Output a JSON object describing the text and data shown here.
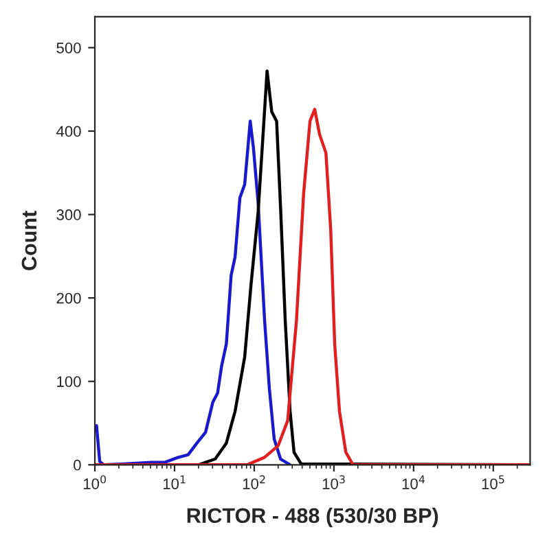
{
  "chart_data": {
    "type": "line",
    "xlabel": "RICTOR - 488 (530/30 BP)",
    "ylabel": "Count",
    "log": "x",
    "xlim": [
      1,
      290000
    ],
    "xticks": [
      {
        "value": 1,
        "label": "10$^{0}$"
      },
      {
        "value": 10,
        "label": "10$^{1}$"
      },
      {
        "value": 100,
        "label": "10$^{2}$"
      },
      {
        "value": 1000,
        "label": "10$^{3}$"
      },
      {
        "value": 10000,
        "label": "10$^{4}$"
      },
      {
        "value": 100000,
        "label": "10$^{5}$"
      }
    ],
    "ylim": [
      0,
      537
    ],
    "yticks": [
      0,
      100,
      200,
      300,
      400,
      500
    ],
    "grid": false,
    "legend": false,
    "marker": "none",
    "line_style": "solid",
    "series": [
      {
        "color": "#1a1acc",
        "x": [
          1.05,
          1.15,
          1.29,
          2.34,
          5.13,
          7.59,
          11.2,
          14.8,
          19.1,
          24.5,
          30.2,
          34.7,
          38.9,
          44.7,
          51.3,
          57.5,
          66.1,
          75.9,
          89.1,
          97.7,
          112,
          135,
          155,
          178,
          214,
          282
        ],
        "values": [
          47,
          4,
          0,
          1,
          3,
          3,
          9,
          12,
          26,
          39,
          75,
          86,
          118,
          145,
          227,
          249,
          320,
          336,
          412,
          380,
          314,
          173,
          91,
          31,
          7,
          0
        ]
      },
      {
        "color": "#000000",
        "x": [
          1.05,
          20,
          32.4,
          44.7,
          57.5,
          75.9,
          91.2,
          112,
          126,
          145,
          166,
          191,
          214,
          245,
          282,
          316,
          389,
          290000
        ],
        "values": [
          0,
          0,
          7,
          26,
          64,
          129,
          216,
          303,
          380,
          472,
          423,
          412,
          309,
          173,
          64,
          15,
          1,
          0
        ]
      },
      {
        "color": "#e02020",
        "x": [
          1.05,
          81.3,
          135,
          200,
          263,
          339,
          417,
          501,
          575,
          661,
          794,
          912,
          1023,
          1175,
          1413,
          1738,
          290000
        ],
        "values": [
          0,
          0,
          9,
          23,
          53,
          173,
          325,
          412,
          426,
          396,
          374,
          282,
          145,
          64,
          15,
          0,
          0
        ]
      }
    ]
  }
}
